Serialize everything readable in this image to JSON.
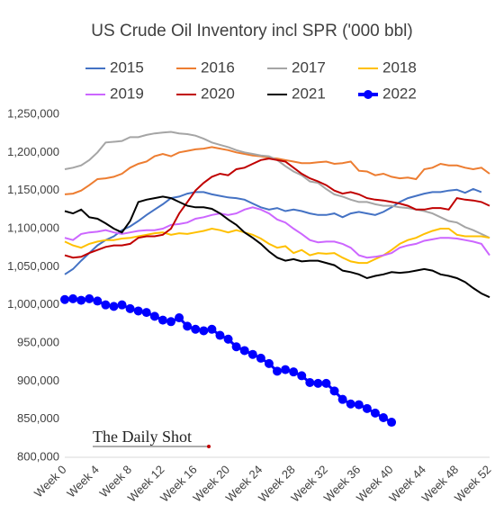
{
  "chart_data": {
    "type": "line",
    "title": "US Crude Oil Inventory incl SPR ('000 bbl)",
    "annotation": "The Daily Shot",
    "categories": [
      "Week 0",
      null,
      null,
      null,
      "Week 4",
      null,
      null,
      null,
      "Week 8",
      null,
      null,
      null,
      "Week 12",
      null,
      null,
      null,
      "Week 16",
      null,
      null,
      null,
      "Week 20",
      null,
      null,
      null,
      "Week 24",
      null,
      null,
      null,
      "Week 28",
      null,
      null,
      null,
      "Week 32",
      null,
      null,
      null,
      "Week 36",
      null,
      null,
      null,
      "Week 40",
      null,
      null,
      null,
      "Week 44",
      null,
      null,
      null,
      "Week 48",
      null,
      null,
      null,
      "Week 52"
    ],
    "ylim": [
      800000,
      1250000
    ],
    "yticks": [
      {
        "value": 800000,
        "label": "800,000"
      },
      {
        "value": 850000,
        "label": "850,000"
      },
      {
        "value": 900000,
        "label": "900,000"
      },
      {
        "value": 950000,
        "label": "950,000"
      },
      {
        "value": 1000000,
        "label": "1,000,000"
      },
      {
        "value": 1050000,
        "label": "1,050,000"
      },
      {
        "value": 1100000,
        "label": "1,100,000"
      },
      {
        "value": 1150000,
        "label": "1,150,000"
      },
      {
        "value": 1200000,
        "label": "1,200,000"
      },
      {
        "value": 1250000,
        "label": "1,250,000"
      }
    ],
    "grid": false,
    "series": [
      {
        "name": "2015",
        "color": "#4472c4",
        "values": [
          1040000,
          1047000,
          1058000,
          1068000,
          1078000,
          1085000,
          1090000,
          1098000,
          1103000,
          1110000,
          1118000,
          1125000,
          1132000,
          1140000,
          1142000,
          1146000,
          1148000,
          1148000,
          1145000,
          1143000,
          1141000,
          1140000,
          1138000,
          1133000,
          1128000,
          1125000,
          1127000,
          1123000,
          1125000,
          1123000,
          1120000,
          1118000,
          1118000,
          1120000,
          1115000,
          1120000,
          1122000,
          1120000,
          1118000,
          1122000,
          1128000,
          1135000,
          1140000,
          1143000,
          1146000,
          1148000,
          1148000,
          1150000,
          1151000,
          1147000,
          1152000,
          1148000,
          null
        ]
      },
      {
        "name": "2016",
        "color": "#ed7d31",
        "values": [
          1145000,
          1146000,
          1150000,
          1157000,
          1165000,
          1166000,
          1168000,
          1172000,
          1180000,
          1185000,
          1188000,
          1195000,
          1198000,
          1195000,
          1200000,
          1202000,
          1204000,
          1205000,
          1207000,
          1205000,
          1203000,
          1200000,
          1198000,
          1196000,
          1195000,
          1193000,
          1192000,
          1190000,
          1188000,
          1186000,
          1186000,
          1187000,
          1188000,
          1185000,
          1186000,
          1188000,
          1176000,
          1175000,
          1170000,
          1172000,
          1168000,
          1166000,
          1167000,
          1165000,
          1178000,
          1180000,
          1185000,
          1183000,
          1183000,
          1180000,
          1178000,
          1180000,
          1172000
        ]
      },
      {
        "name": "2017",
        "color": "#a5a5a5",
        "values": [
          1178000,
          1180000,
          1183000,
          1190000,
          1200000,
          1213000,
          1214000,
          1215000,
          1220000,
          1220000,
          1223000,
          1225000,
          1226000,
          1227000,
          1225000,
          1224000,
          1222000,
          1218000,
          1213000,
          1210000,
          1207000,
          1203000,
          1200000,
          1198000,
          1196000,
          1195000,
          1190000,
          1182000,
          1175000,
          1170000,
          1162000,
          1160000,
          1152000,
          1145000,
          1142000,
          1138000,
          1135000,
          1135000,
          1132000,
          1130000,
          1130000,
          1128000,
          1127000,
          1125000,
          1123000,
          1120000,
          1115000,
          1110000,
          1108000,
          1102000,
          1098000,
          1093000,
          1088000
        ]
      },
      {
        "name": "2018",
        "color": "#ffc000",
        "values": [
          1083000,
          1078000,
          1075000,
          1080000,
          1083000,
          1085000,
          1085000,
          1087000,
          1088000,
          1090000,
          1092000,
          1094000,
          1095000,
          1092000,
          1094000,
          1093000,
          1095000,
          1097000,
          1100000,
          1098000,
          1095000,
          1098000,
          1095000,
          1092000,
          1087000,
          1080000,
          1075000,
          1077000,
          1068000,
          1072000,
          1065000,
          1068000,
          1067000,
          1068000,
          1062000,
          1057000,
          1055000,
          1055000,
          1060000,
          1065000,
          1072000,
          1080000,
          1085000,
          1088000,
          1093000,
          1097000,
          1100000,
          1100000,
          1092000,
          1090000,
          1090000,
          1090000,
          1088000
        ]
      },
      {
        "name": "2019",
        "color": "#cc66ff",
        "values": [
          1088000,
          1085000,
          1093000,
          1095000,
          1096000,
          1098000,
          1095000,
          1093000,
          1095000,
          1097000,
          1098000,
          1098000,
          1100000,
          1105000,
          1106000,
          1108000,
          1113000,
          1115000,
          1118000,
          1120000,
          1118000,
          1120000,
          1125000,
          1128000,
          1125000,
          1120000,
          1112000,
          1108000,
          1100000,
          1093000,
          1085000,
          1082000,
          1083000,
          1083000,
          1080000,
          1075000,
          1065000,
          1062000,
          1063000,
          1065000,
          1068000,
          1075000,
          1078000,
          1080000,
          1084000,
          1086000,
          1088000,
          1088000,
          1087000,
          1085000,
          1083000,
          1080000,
          1065000
        ]
      },
      {
        "name": "2020",
        "color": "#c00000",
        "values": [
          1065000,
          1062000,
          1063000,
          1068000,
          1072000,
          1076000,
          1078000,
          1078000,
          1080000,
          1088000,
          1090000,
          1090000,
          1092000,
          1100000,
          1120000,
          1135000,
          1150000,
          1160000,
          1168000,
          1172000,
          1170000,
          1178000,
          1180000,
          1185000,
          1190000,
          1192000,
          1190000,
          1188000,
          1180000,
          1172000,
          1166000,
          1162000,
          1157000,
          1150000,
          1146000,
          1148000,
          1145000,
          1140000,
          1138000,
          1137000,
          1135000,
          1133000,
          1130000,
          1125000,
          1125000,
          1127000,
          1127000,
          1125000,
          1140000,
          1138000,
          1137000,
          1135000,
          1130000
        ]
      },
      {
        "name": "2021",
        "color": "#000000",
        "values": [
          1123000,
          1120000,
          1125000,
          1115000,
          1113000,
          1107000,
          1100000,
          1095000,
          1110000,
          1135000,
          1138000,
          1140000,
          1142000,
          1140000,
          1135000,
          1130000,
          1128000,
          1128000,
          1126000,
          1120000,
          1112000,
          1105000,
          1095000,
          1088000,
          1080000,
          1070000,
          1062000,
          1058000,
          1060000,
          1057000,
          1058000,
          1058000,
          1055000,
          1052000,
          1045000,
          1043000,
          1040000,
          1035000,
          1038000,
          1040000,
          1043000,
          1042000,
          1043000,
          1045000,
          1047000,
          1045000,
          1040000,
          1038000,
          1035000,
          1030000,
          1022000,
          1015000,
          1010000
        ]
      },
      {
        "name": "2022",
        "color": "#0000ff",
        "markers": true,
        "values": [
          1007000,
          1008000,
          1006000,
          1008000,
          1005000,
          1000000,
          998000,
          1000000,
          995000,
          992000,
          990000,
          985000,
          980000,
          978000,
          983000,
          972000,
          968000,
          966000,
          968000,
          960000,
          955000,
          945000,
          940000,
          935000,
          930000,
          923000,
          913000,
          915000,
          912000,
          907000,
          898000,
          897000,
          897000,
          887000,
          876000,
          870000,
          869000,
          864000,
          858000,
          852000,
          846000,
          null,
          null,
          null,
          null,
          null,
          null,
          null,
          null,
          null,
          null,
          null,
          null
        ]
      }
    ]
  }
}
